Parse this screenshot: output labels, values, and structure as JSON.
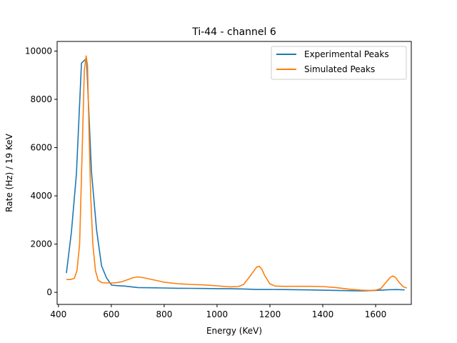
{
  "chart_data": {
    "type": "line",
    "title": "Ti-44 - channel 6",
    "xlabel": "Energy (KeV)",
    "ylabel": "Rate (Hz) / 19 KeV",
    "xlim": [
      395,
      1735
    ],
    "ylim": [
      -500,
      10400
    ],
    "xticks": [
      400,
      600,
      800,
      1000,
      1200,
      1400,
      1600
    ],
    "yticks": [
      0,
      2000,
      4000,
      6000,
      8000,
      10000
    ],
    "grid": false,
    "legend_position": "upper right",
    "series": [
      {
        "name": "Experimental Peaks",
        "color": "#1f77b4",
        "x": [
          430,
          449,
          468,
          487,
          506,
          525,
          544,
          563,
          582,
          601,
          620,
          650,
          700,
          750,
          800,
          850,
          900,
          950,
          1000,
          1050,
          1100,
          1150,
          1200,
          1250,
          1300,
          1350,
          1400,
          1450,
          1500,
          1550,
          1600,
          1650,
          1680,
          1710
        ],
        "y": [
          800,
          2500,
          4900,
          9500,
          9700,
          5000,
          2600,
          1100,
          600,
          300,
          280,
          260,
          200,
          190,
          180,
          170,
          165,
          160,
          155,
          150,
          140,
          120,
          118,
          116,
          110,
          100,
          90,
          80,
          70,
          60,
          80,
          110,
          115,
          100
        ]
      },
      {
        "name": "Simulated Peaks",
        "color": "#ff7f0e",
        "x": [
          430,
          445,
          460,
          470,
          480,
          490,
          498,
          505,
          510,
          515,
          522,
          530,
          540,
          550,
          565,
          580,
          600,
          620,
          640,
          660,
          680,
          700,
          720,
          750,
          800,
          850,
          900,
          950,
          1000,
          1050,
          1080,
          1100,
          1120,
          1140,
          1150,
          1160,
          1170,
          1180,
          1200,
          1220,
          1250,
          1300,
          1350,
          1400,
          1450,
          1500,
          1550,
          1580,
          1600,
          1620,
          1640,
          1655,
          1665,
          1675,
          1690,
          1705,
          1718
        ],
        "y": [
          530,
          530,
          580,
          900,
          2000,
          6000,
          9200,
          9800,
          9400,
          7000,
          4000,
          2000,
          900,
          500,
          400,
          390,
          390,
          400,
          440,
          520,
          600,
          640,
          610,
          540,
          420,
          360,
          330,
          310,
          270,
          230,
          240,
          320,
          600,
          900,
          1050,
          1080,
          950,
          700,
          350,
          260,
          250,
          250,
          250,
          240,
          200,
          130,
          85,
          80,
          90,
          160,
          420,
          620,
          680,
          620,
          400,
          230,
          180
        ]
      }
    ]
  }
}
